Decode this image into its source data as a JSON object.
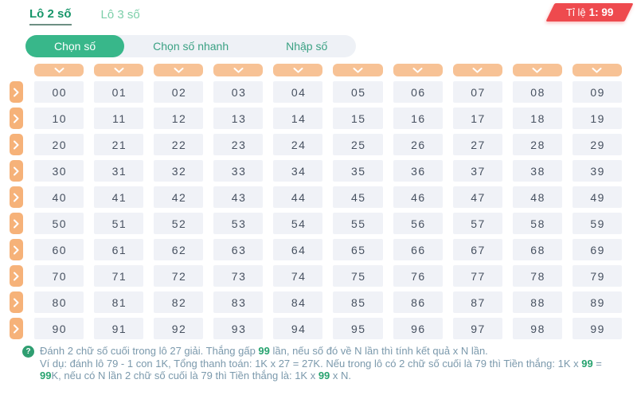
{
  "tabs": {
    "lo2": "Lô 2 số",
    "lo3": "Lô 3 số"
  },
  "badge": {
    "prefix": "Tỉ lệ",
    "value": "1: 99"
  },
  "segments": {
    "choose": "Chọn số",
    "quick": "Chọn số nhanh",
    "input": "Nhập số"
  },
  "grid": {
    "column_header_icon": "chevron-down-icon",
    "row_header_icon": "chevron-right-icon",
    "rows": [
      [
        "00",
        "01",
        "02",
        "03",
        "04",
        "05",
        "06",
        "07",
        "08",
        "09"
      ],
      [
        "10",
        "11",
        "12",
        "13",
        "14",
        "15",
        "16",
        "17",
        "18",
        "19"
      ],
      [
        "20",
        "21",
        "22",
        "23",
        "24",
        "25",
        "26",
        "27",
        "28",
        "29"
      ],
      [
        "30",
        "31",
        "32",
        "33",
        "34",
        "35",
        "36",
        "37",
        "38",
        "39"
      ],
      [
        "40",
        "41",
        "42",
        "43",
        "44",
        "45",
        "46",
        "47",
        "48",
        "49"
      ],
      [
        "50",
        "51",
        "52",
        "53",
        "54",
        "55",
        "56",
        "57",
        "58",
        "59"
      ],
      [
        "60",
        "61",
        "62",
        "63",
        "64",
        "65",
        "66",
        "67",
        "68",
        "69"
      ],
      [
        "70",
        "71",
        "72",
        "73",
        "74",
        "75",
        "76",
        "77",
        "78",
        "79"
      ],
      [
        "80",
        "81",
        "82",
        "83",
        "84",
        "85",
        "86",
        "87",
        "88",
        "89"
      ],
      [
        "90",
        "91",
        "92",
        "93",
        "94",
        "95",
        "96",
        "97",
        "98",
        "99"
      ]
    ]
  },
  "info": {
    "icon": "question-mark-icon",
    "paragraphs": [
      [
        {
          "t": "Đánh 2 chữ số cuối trong lô 27 giải. Thắng gấp ",
          "b": false
        },
        {
          "t": "99",
          "b": true
        },
        {
          "t": " lần, nếu số đó về N lần thì tính kết quả x N lần.",
          "b": false
        }
      ],
      [
        {
          "t": "Ví dụ: đánh lô 79 - 1 con 1K, Tổng thanh toán: 1K x 27 = 27K. Nếu trong lô có 2 chữ số cuối là 79 thì Tiền thắng: 1K x ",
          "b": false
        },
        {
          "t": "99",
          "b": true
        },
        {
          "t": " = ",
          "b": false
        },
        {
          "t": "99",
          "b": true
        },
        {
          "t": "K, nếu có N lần 2 chữ số cuối là 79 thì Tiền thắng là: 1K x ",
          "b": false
        },
        {
          "t": "99",
          "b": true
        },
        {
          "t": " x N.",
          "b": false
        }
      ]
    ]
  },
  "colors": {
    "accent_green": "#38b78a",
    "tab_active_green": "#17966a",
    "tab_inactive_green": "#7ccfa9",
    "peach_header": "#f7c295",
    "peach_row_button": "#f6b279",
    "badge_red": "#ee4a4e",
    "cell_background": "#f0f2f7",
    "cell_text": "#475160",
    "info_text": "#7b99ac",
    "info_bold_green": "#27a36f"
  }
}
